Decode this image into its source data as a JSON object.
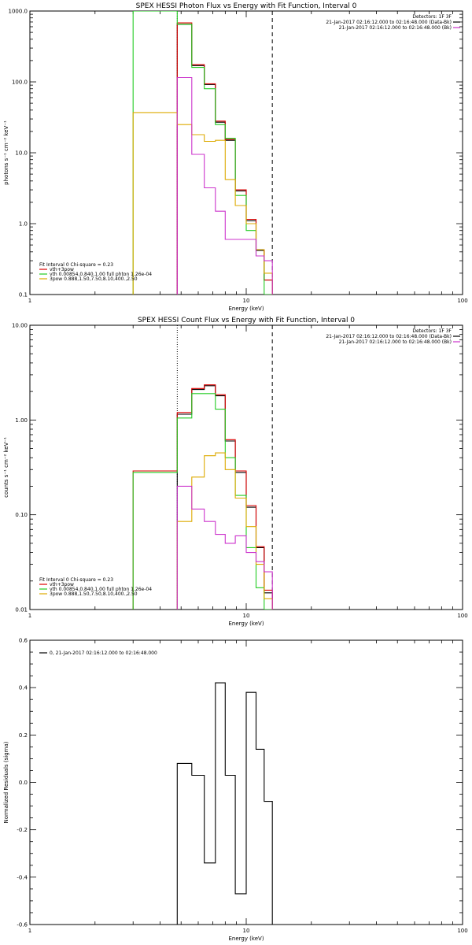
{
  "chart_data": [
    {
      "type": "line",
      "title": "SPEX HESSI Photon Flux vs Energy with Fit Function, Interval 0",
      "xlabel": "Energy (keV)",
      "ylabel": "photons s⁻¹ cm⁻² keV⁻¹",
      "xscale": "log",
      "yscale": "log",
      "xlim": [
        1,
        100
      ],
      "ylim": [
        0.1,
        1000
      ],
      "xticks": [
        {
          "v": 1,
          "label": "1"
        },
        {
          "v": 10,
          "label": "10"
        },
        {
          "v": 100,
          "label": "100"
        }
      ],
      "yticks": [
        {
          "v": 0.1,
          "label": "0.1"
        },
        {
          "v": 1,
          "label": "1.0"
        },
        {
          "v": 10,
          "label": "10.0"
        },
        {
          "v": 100,
          "label": "100.0"
        },
        {
          "v": 1000,
          "label": "1000.0"
        }
      ],
      "vlines": [
        {
          "x": 4.8,
          "style": "dotted"
        },
        {
          "x": 13.2,
          "style": "dashed"
        }
      ],
      "edges": [
        3.0,
        4.8,
        5.6,
        6.4,
        7.2,
        8.0,
        8.9,
        10.0,
        11.1,
        12.1,
        13.2
      ],
      "legend_top": {
        "detectors": "Detectors: 1F 3F",
        "entries": [
          {
            "text": "21-Jan-2017 02:16:12.000 to 02:16:48.000 (Data-Bk)",
            "color": "#000000"
          },
          {
            "text": "21-Jan-2017 02:16:12.000 to 02:16:48.000 (Bk)",
            "color": "#cc33cc"
          }
        ]
      },
      "legend_fit": {
        "header": "Fit Interval 0   Chi-square = 0.23",
        "entries": [
          {
            "text": "vth+3pow",
            "color": "#dd0000"
          },
          {
            "text": "vth 0.00854,0.840,1.00  full phton 1.26e-04",
            "color": "#22cc22"
          },
          {
            "text": "3pow 0.888,1.50,7.50,8.10,400.,2.50",
            "color": "#ddaa00"
          }
        ]
      },
      "series": [
        {
          "name": "Data-Bk",
          "color": "#000000",
          "values": [
            null,
            650,
            170,
            92,
            27,
            15,
            2.9,
            1.1,
            0.42,
            0.16
          ]
        },
        {
          "name": "vth+3pow",
          "color": "#dd0000",
          "values": [
            null,
            680,
            175,
            94,
            28,
            15.5,
            3.0,
            1.15,
            0.43,
            0.16
          ]
        },
        {
          "name": "vth",
          "color": "#22cc22",
          "values": [
            2000,
            650,
            160,
            80,
            25,
            16,
            2.5,
            0.8,
            0.35,
            0.08
          ]
        },
        {
          "name": "3pow",
          "color": "#ddaa00",
          "values": [
            37,
            25,
            18,
            14.5,
            15,
            4.2,
            1.8,
            1.0,
            0.43,
            0.2
          ]
        },
        {
          "name": "Bk",
          "color": "#cc33cc",
          "values": [
            null,
            115,
            9.5,
            3.2,
            1.5,
            0.6,
            0.6,
            0.6,
            0.35,
            0.3
          ]
        }
      ]
    },
    {
      "type": "line",
      "title": "SPEX HESSI Count Flux vs Energy with Fit Function, Interval 0",
      "xlabel": "Energy (keV)",
      "ylabel": "counts s⁻¹ cm⁻² keV⁻¹",
      "xscale": "log",
      "yscale": "log",
      "xlim": [
        1,
        100
      ],
      "ylim": [
        0.01,
        10
      ],
      "xticks": [
        {
          "v": 1,
          "label": "1"
        },
        {
          "v": 10,
          "label": "10"
        },
        {
          "v": 100,
          "label": "100"
        }
      ],
      "yticks": [
        {
          "v": 0.01,
          "label": "0.01"
        },
        {
          "v": 0.1,
          "label": "0.10"
        },
        {
          "v": 1,
          "label": "1.00"
        },
        {
          "v": 10,
          "label": "10.00"
        }
      ],
      "vlines": [
        {
          "x": 4.8,
          "style": "dotted"
        },
        {
          "x": 13.2,
          "style": "dashed"
        }
      ],
      "edges": [
        3.0,
        4.8,
        5.6,
        6.4,
        7.2,
        8.0,
        8.9,
        10.0,
        11.1,
        12.1,
        13.2
      ],
      "legend_top": {
        "detectors": "Detectors: 1F 3F",
        "entries": [
          {
            "text": "21-Jan-2017 02:16:12.000 to 02:16:48.000 (Data-Bk)",
            "color": "#000000"
          },
          {
            "text": "21-Jan-2017 02:16:12.000 to 02:16:48.000 (Bk)",
            "color": "#cc33cc"
          }
        ]
      },
      "legend_fit": {
        "header": "Fit Interval 0   Chi-square = 0.23",
        "entries": [
          {
            "text": "vth+3pow",
            "color": "#dd0000"
          },
          {
            "text": "vth 0.00854,0.840,1.00  full phton 1.26e-04",
            "color": "#22cc22"
          },
          {
            "text": "3pow 0.888,1.50,7.50,8.10,400.,2.50",
            "color": "#ddaa00"
          }
        ]
      },
      "series": [
        {
          "name": "Data-Bk",
          "color": "#000000",
          "values": [
            null,
            1.15,
            2.1,
            2.3,
            1.8,
            0.6,
            0.28,
            0.12,
            0.045,
            0.015
          ]
        },
        {
          "name": "vth+3pow",
          "color": "#dd0000",
          "values": [
            0.29,
            1.2,
            2.15,
            2.35,
            1.85,
            0.62,
            0.29,
            0.125,
            0.046,
            0.016
          ]
        },
        {
          "name": "vth",
          "color": "#22cc22",
          "values": [
            0.28,
            1.05,
            1.9,
            1.9,
            1.3,
            0.4,
            0.16,
            0.045,
            0.017,
            0.01
          ]
        },
        {
          "name": "3pow",
          "color": "#ddaa00",
          "values": [
            null,
            0.085,
            0.25,
            0.42,
            0.45,
            0.3,
            0.15,
            0.075,
            0.03,
            0.013
          ]
        },
        {
          "name": "Bk",
          "color": "#cc33cc",
          "values": [
            null,
            0.2,
            0.115,
            0.085,
            0.062,
            0.05,
            0.06,
            0.04,
            0.032,
            0.025
          ]
        }
      ]
    },
    {
      "type": "line",
      "title": "",
      "xlabel": "Energy (keV)",
      "ylabel": "Normalized Residuals (sigma)",
      "xscale": "log",
      "yscale": "linear",
      "xlim": [
        1,
        100
      ],
      "ylim": [
        -0.6,
        0.6
      ],
      "xticks": [
        {
          "v": 1,
          "label": "1"
        },
        {
          "v": 10,
          "label": "10"
        },
        {
          "v": 100,
          "label": "100"
        }
      ],
      "yticks": [
        {
          "v": -0.6,
          "label": "-0.6"
        },
        {
          "v": -0.4,
          "label": "-0.4"
        },
        {
          "v": -0.2,
          "label": "-0.2"
        },
        {
          "v": 0,
          "label": "0.0"
        },
        {
          "v": 0.2,
          "label": "0.2"
        },
        {
          "v": 0.4,
          "label": "0.4"
        },
        {
          "v": 0.6,
          "label": "0.6"
        }
      ],
      "vlines": [],
      "edges": [
        4.8,
        5.6,
        6.4,
        7.2,
        8.0,
        8.9,
        10.0,
        11.1,
        12.1,
        13.2
      ],
      "legend_top": {
        "detectors": "",
        "entries": []
      },
      "legend_fit": {
        "header": "",
        "entries": [
          {
            "text": "0, 21-Jan-2017 02:16:12.000 to 02:16:48.000",
            "color": "#000000"
          }
        ]
      },
      "series": [
        {
          "name": "0, 21-Jan-2017 02:16:12.000 to 02:16:48.000",
          "color": "#000000",
          "values": [
            0.08,
            0.03,
            -0.34,
            0.42,
            0.03,
            -0.47,
            0.38,
            0.14,
            -0.08
          ]
        }
      ]
    }
  ]
}
